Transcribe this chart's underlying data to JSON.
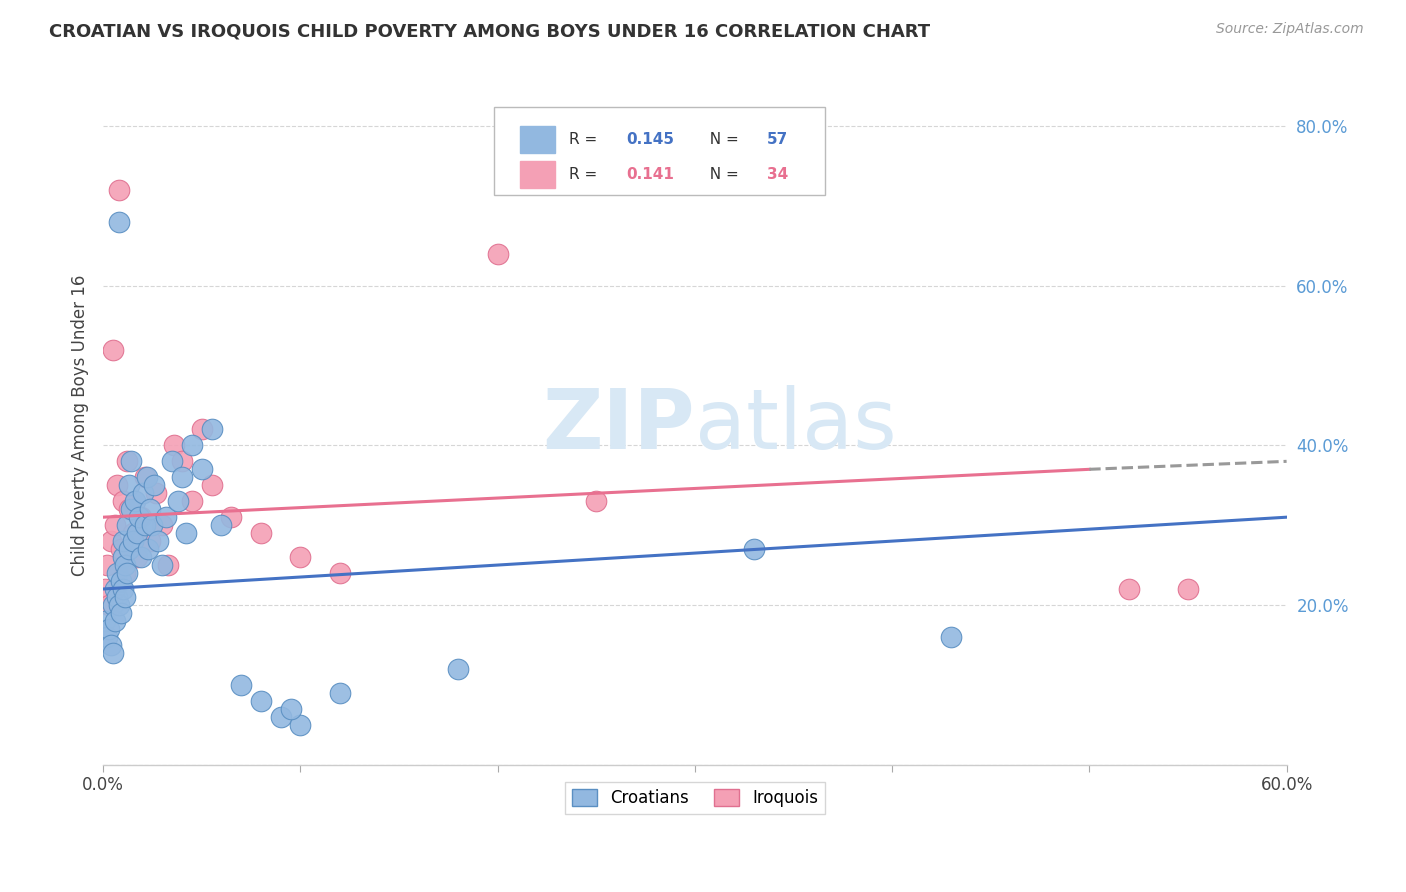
{
  "title": "CROATIAN VS IROQUOIS CHILD POVERTY AMONG BOYS UNDER 16 CORRELATION CHART",
  "source": "Source: ZipAtlas.com",
  "ylabel": "Child Poverty Among Boys Under 16",
  "xlim": [
    0,
    0.6
  ],
  "ylim": [
    0,
    0.85
  ],
  "croatian_color": "#92b8e0",
  "iroquois_color": "#f4a0b5",
  "croatian_edge_color": "#5a8fc2",
  "iroquois_edge_color": "#e07090",
  "croatian_line_color": "#4472c4",
  "iroquois_line_color": "#e87090",
  "watermark_color": "#d8e8f5",
  "grid_color": "#cccccc",
  "ytick_color": "#5b9bd5",
  "croatian_x": [
    0.001,
    0.002,
    0.003,
    0.004,
    0.005,
    0.005,
    0.006,
    0.006,
    0.007,
    0.007,
    0.008,
    0.008,
    0.009,
    0.009,
    0.01,
    0.01,
    0.01,
    0.011,
    0.011,
    0.012,
    0.012,
    0.013,
    0.013,
    0.014,
    0.014,
    0.015,
    0.016,
    0.017,
    0.018,
    0.019,
    0.02,
    0.021,
    0.022,
    0.023,
    0.024,
    0.025,
    0.026,
    0.028,
    0.03,
    0.032,
    0.035,
    0.038,
    0.04,
    0.042,
    0.045,
    0.05,
    0.055,
    0.06,
    0.07,
    0.08,
    0.09,
    0.1,
    0.12,
    0.18,
    0.33,
    0.43,
    0.095
  ],
  "croatian_y": [
    0.18,
    0.16,
    0.17,
    0.15,
    0.2,
    0.14,
    0.22,
    0.18,
    0.21,
    0.24,
    0.68,
    0.2,
    0.23,
    0.19,
    0.26,
    0.22,
    0.28,
    0.25,
    0.21,
    0.3,
    0.24,
    0.35,
    0.27,
    0.32,
    0.38,
    0.28,
    0.33,
    0.29,
    0.31,
    0.26,
    0.34,
    0.3,
    0.36,
    0.27,
    0.32,
    0.3,
    0.35,
    0.28,
    0.25,
    0.31,
    0.38,
    0.33,
    0.36,
    0.29,
    0.4,
    0.37,
    0.42,
    0.3,
    0.1,
    0.08,
    0.06,
    0.05,
    0.09,
    0.12,
    0.27,
    0.16,
    0.07
  ],
  "iroquois_x": [
    0.001,
    0.002,
    0.003,
    0.004,
    0.005,
    0.006,
    0.007,
    0.008,
    0.009,
    0.01,
    0.011,
    0.012,
    0.013,
    0.015,
    0.017,
    0.019,
    0.021,
    0.024,
    0.027,
    0.03,
    0.033,
    0.036,
    0.04,
    0.045,
    0.05,
    0.055,
    0.065,
    0.08,
    0.1,
    0.12,
    0.2,
    0.25,
    0.52,
    0.55
  ],
  "iroquois_y": [
    0.22,
    0.25,
    0.2,
    0.28,
    0.52,
    0.3,
    0.35,
    0.72,
    0.27,
    0.33,
    0.24,
    0.38,
    0.32,
    0.29,
    0.26,
    0.31,
    0.36,
    0.28,
    0.34,
    0.3,
    0.25,
    0.4,
    0.38,
    0.33,
    0.42,
    0.35,
    0.31,
    0.29,
    0.26,
    0.24,
    0.64,
    0.33,
    0.22,
    0.22
  ],
  "croatian_trend": [
    0.22,
    0.31
  ],
  "iroquois_trend_solid": [
    0.31,
    0.37
  ],
  "iroquois_trend_dashed": [
    0.37,
    0.38
  ]
}
